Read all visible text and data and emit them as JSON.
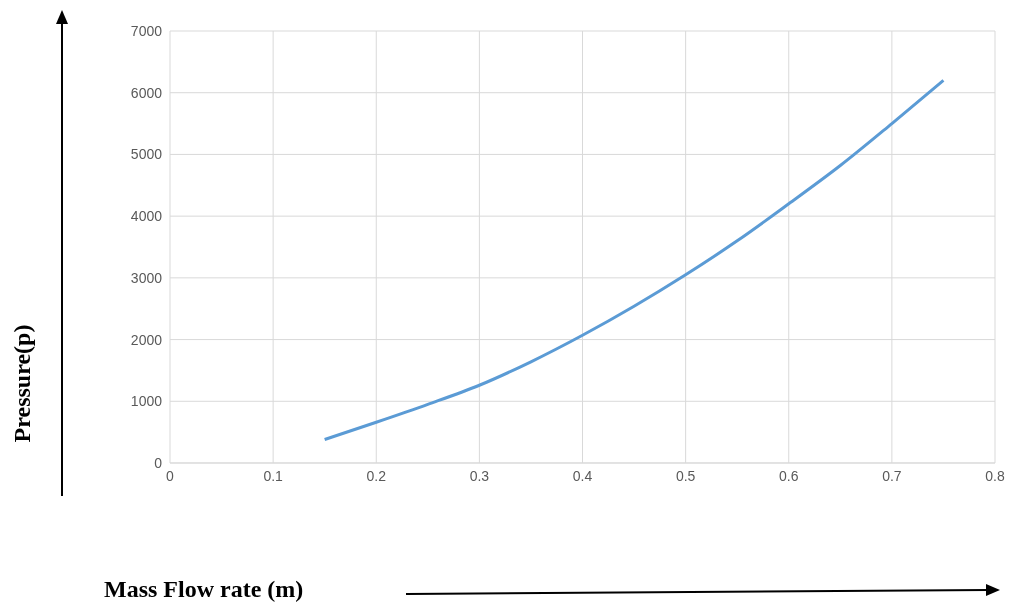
{
  "chart_data": {
    "type": "line",
    "xlabel": "Mass Flow rate (m)",
    "ylabel": "Pressure(p)",
    "x": [
      0.15,
      0.2,
      0.25,
      0.3,
      0.35,
      0.4,
      0.45,
      0.5,
      0.55,
      0.6,
      0.65,
      0.7,
      0.75
    ],
    "series": [
      {
        "color": "#5b9bd5",
        "values": [
          380,
          660,
          950,
          1260,
          1640,
          2070,
          2540,
          3050,
          3600,
          4200,
          4820,
          5500,
          6200
        ]
      }
    ],
    "xlim": [
      0,
      0.8
    ],
    "xticks": [
      0,
      0.1,
      0.2,
      0.3,
      0.4,
      0.5,
      0.6,
      0.7,
      0.8
    ],
    "ylim": [
      0,
      7000
    ],
    "yticks": [
      0,
      1000,
      2000,
      3000,
      4000,
      5000,
      6000,
      7000
    ],
    "grid": true,
    "marker": "none",
    "line_style": "solid",
    "legend": false
  }
}
